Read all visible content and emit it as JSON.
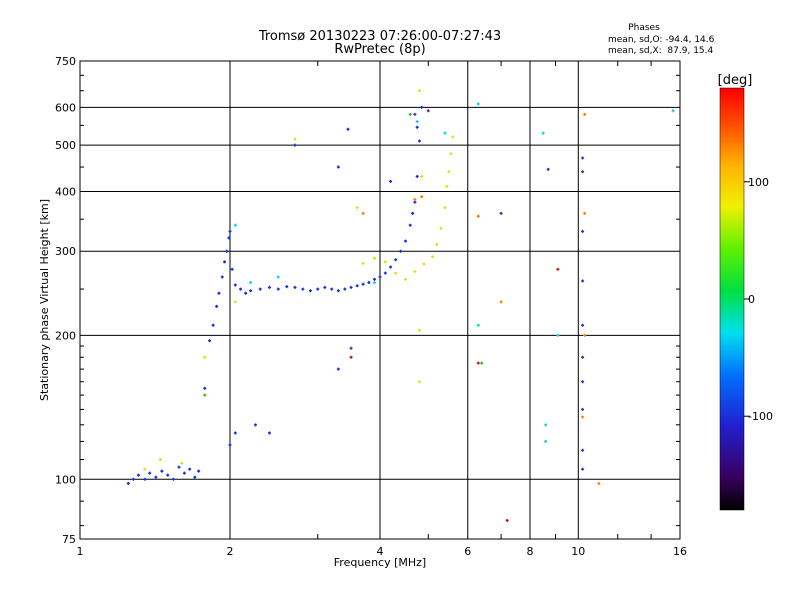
{
  "chart_data": {
    "type": "scatter",
    "title": "Tromsø 20130223 07:26:00-07:27:43",
    "subtitle": "RwPretec (8p)",
    "stats": {
      "heading": "Phases",
      "line_o": "mean, sd,O: -94.4, 14.6",
      "line_x": "mean, sd,X:  87.9, 15.4"
    },
    "xlabel": "Frequency [MHz]",
    "ylabel": "Stationary phase Virtual Height [km]",
    "x_scale": "log",
    "y_scale": "log",
    "xlim": [
      1,
      16
    ],
    "ylim": [
      75,
      750
    ],
    "x_ticks": [
      1,
      2,
      4,
      6,
      8,
      10,
      16
    ],
    "x_tick_labels": [
      "1",
      "2",
      "4",
      "6",
      "8",
      "10",
      "16"
    ],
    "y_ticks": [
      75,
      100,
      200,
      300,
      400,
      500,
      600,
      750
    ],
    "y_tick_labels": [
      "75",
      "100",
      "200",
      "300",
      "400",
      "500",
      "600",
      "750"
    ],
    "grid": true,
    "colorbar": {
      "label": "[deg]",
      "range": [
        -180,
        180
      ],
      "ticks": [
        100,
        0,
        -100
      ],
      "tick_labels": [
        "100",
        "0",
        "-100"
      ]
    },
    "series": [
      {
        "color": "#1030e0",
        "phase": -100,
        "points": [
          [
            1.25,
            98
          ],
          [
            1.28,
            100
          ],
          [
            1.31,
            102
          ],
          [
            1.35,
            100
          ],
          [
            1.38,
            103
          ],
          [
            1.42,
            101
          ],
          [
            1.46,
            104
          ],
          [
            1.5,
            102
          ],
          [
            1.54,
            100
          ],
          [
            1.58,
            106
          ],
          [
            1.62,
            103
          ],
          [
            1.66,
            105
          ],
          [
            1.7,
            101
          ],
          [
            1.73,
            104
          ],
          [
            1.78,
            155
          ],
          [
            1.82,
            195
          ],
          [
            1.85,
            210
          ],
          [
            1.88,
            230
          ],
          [
            1.9,
            245
          ],
          [
            1.93,
            265
          ],
          [
            1.95,
            285
          ],
          [
            1.97,
            300
          ],
          [
            1.99,
            320
          ],
          [
            2.0,
            330
          ],
          [
            2.02,
            275
          ],
          [
            2.05,
            255
          ],
          [
            2.1,
            250
          ],
          [
            2.15,
            245
          ],
          [
            2.2,
            248
          ],
          [
            2.3,
            250
          ],
          [
            2.4,
            252
          ],
          [
            2.5,
            250
          ],
          [
            2.6,
            253
          ],
          [
            2.7,
            252
          ],
          [
            2.8,
            250
          ],
          [
            2.9,
            248
          ],
          [
            3.0,
            250
          ],
          [
            3.1,
            252
          ],
          [
            3.2,
            250
          ],
          [
            3.3,
            248
          ],
          [
            3.4,
            250
          ],
          [
            3.5,
            252
          ],
          [
            3.6,
            254
          ],
          [
            3.7,
            256
          ],
          [
            3.8,
            258
          ],
          [
            3.9,
            262
          ],
          [
            4.0,
            265
          ],
          [
            4.1,
            270
          ],
          [
            4.2,
            278
          ],
          [
            4.3,
            288
          ],
          [
            4.4,
            300
          ],
          [
            4.5,
            315
          ],
          [
            4.6,
            340
          ],
          [
            4.65,
            360
          ],
          [
            4.7,
            380
          ],
          [
            4.75,
            430
          ],
          [
            4.8,
            510
          ],
          [
            4.85,
            600
          ],
          [
            2.0,
            118
          ],
          [
            2.05,
            125
          ],
          [
            2.25,
            130
          ],
          [
            2.4,
            125
          ],
          [
            2.7,
            500
          ],
          [
            3.45,
            540
          ],
          [
            4.2,
            420
          ],
          [
            4.75,
            545
          ],
          [
            3.3,
            450
          ]
        ]
      },
      {
        "color": "#e0e010",
        "phase": 100,
        "points": [
          [
            1.35,
            105
          ],
          [
            1.45,
            110
          ],
          [
            1.6,
            108
          ],
          [
            1.78,
            180
          ],
          [
            2.05,
            235
          ],
          [
            3.7,
            283
          ],
          [
            3.9,
            290
          ],
          [
            4.1,
            285
          ],
          [
            4.3,
            270
          ],
          [
            4.5,
            262
          ],
          [
            4.7,
            272
          ],
          [
            4.9,
            282
          ],
          [
            5.1,
            292
          ],
          [
            5.2,
            310
          ],
          [
            5.3,
            335
          ],
          [
            5.4,
            370
          ],
          [
            5.45,
            410
          ],
          [
            5.5,
            440
          ],
          [
            5.55,
            480
          ],
          [
            5.6,
            520
          ],
          [
            4.8,
            650
          ],
          [
            4.85,
            430
          ],
          [
            4.8,
            205
          ],
          [
            4.8,
            160
          ],
          [
            3.6,
            370
          ],
          [
            2.7,
            515
          ]
        ]
      },
      {
        "color": "#10d0e0",
        "phase": -20,
        "points": [
          [
            2.05,
            340
          ],
          [
            2.2,
            258
          ],
          [
            2.5,
            265
          ],
          [
            3.9,
            258
          ],
          [
            4.75,
            560
          ],
          [
            5.4,
            530
          ],
          [
            6.3,
            610
          ],
          [
            8.5,
            530
          ],
          [
            8.6,
            130
          ],
          [
            8.6,
            120
          ],
          [
            15.5,
            590
          ],
          [
            6.3,
            355
          ],
          [
            6.3,
            210
          ],
          [
            9.1,
            200
          ]
        ]
      },
      {
        "color": "#ff8000",
        "phase": 150,
        "points": [
          [
            3.7,
            360
          ],
          [
            4.7,
            385
          ],
          [
            6.3,
            355
          ],
          [
            7.0,
            235
          ],
          [
            10.3,
            580
          ],
          [
            10.3,
            360
          ],
          [
            10.3,
            200
          ],
          [
            10.2,
            135
          ],
          [
            11,
            98
          ],
          [
            4.85,
            390
          ]
        ]
      },
      {
        "color": "#d01010",
        "phase": 175,
        "points": [
          [
            3.5,
            180
          ],
          [
            6.3,
            175
          ],
          [
            7.2,
            82
          ],
          [
            9.1,
            275
          ]
        ]
      },
      {
        "color": "#6020a0",
        "phase": -130,
        "points": [
          [
            3.5,
            188
          ],
          [
            3.3,
            170
          ],
          [
            4.7,
            580
          ],
          [
            5.0,
            590
          ],
          [
            10.2,
            470
          ],
          [
            10.2,
            440
          ],
          [
            10.2,
            330
          ],
          [
            10.2,
            260
          ],
          [
            10.2,
            210
          ],
          [
            10.2,
            180
          ],
          [
            10.2,
            160
          ],
          [
            10.2,
            140
          ],
          [
            10.2,
            115
          ],
          [
            10.2,
            105
          ],
          [
            8.7,
            445
          ],
          [
            7.0,
            360
          ]
        ]
      },
      {
        "color": "#20c020",
        "phase": 20,
        "points": [
          [
            1.78,
            150
          ],
          [
            4.6,
            580
          ],
          [
            6.4,
            175
          ]
        ]
      }
    ]
  }
}
